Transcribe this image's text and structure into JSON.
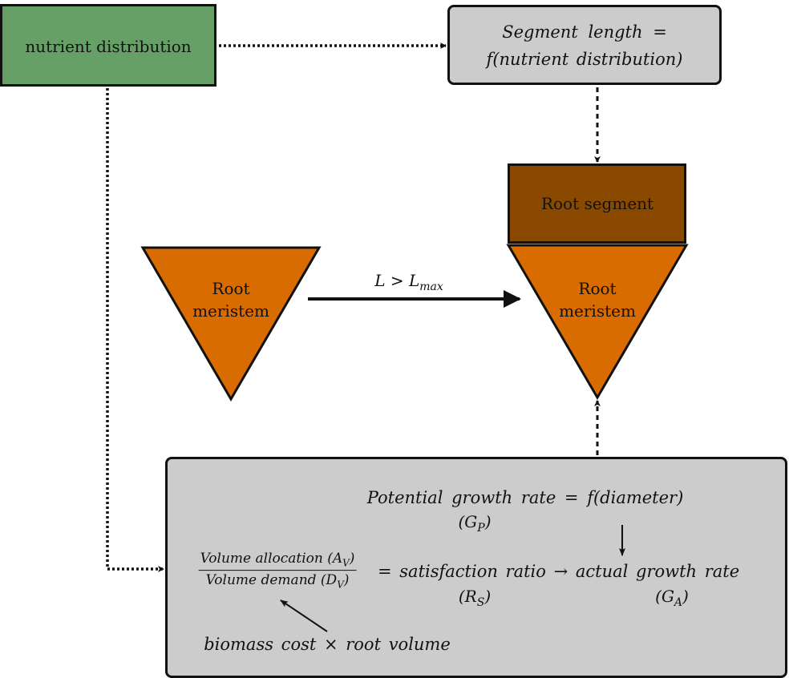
{
  "nodes": {
    "nutrient_distribution": "nutrient distribution",
    "segment_length_line1": "Segment length =",
    "segment_length_line2": "f(nutrient distribution)",
    "root_segment": "Root segment",
    "root_meristem_left_line1": "Root",
    "root_meristem_left_line2": "meristem",
    "root_meristem_right_line1": "Root",
    "root_meristem_right_line2": "meristem"
  },
  "edges": {
    "threshold_label_main": "L > L",
    "threshold_label_sub": "max"
  },
  "equations": {
    "potential_growth": "Potential growth rate = f(diameter)",
    "gp_main": "(G",
    "gp_sub": "P",
    "gp_close": ")",
    "numerator_main": "Volume allocation (A",
    "numerator_sub": "V",
    "numerator_close": ")",
    "denominator_main": "Volume demand (D",
    "denominator_sub": "V",
    "denominator_close": ")",
    "rhs": "= satisfaction ratio → actual growth rate",
    "rs_main": "(R",
    "rs_sub": "S",
    "rs_close": ")",
    "ga_main": "(G",
    "ga_sub": "A",
    "ga_close": ")",
    "biomass": "biomass cost × root volume"
  },
  "colors": {
    "nutrient_box": "#67a067",
    "grey_box": "#cccccc",
    "root_segment": "#894a00",
    "meristem": "#d96c00"
  }
}
